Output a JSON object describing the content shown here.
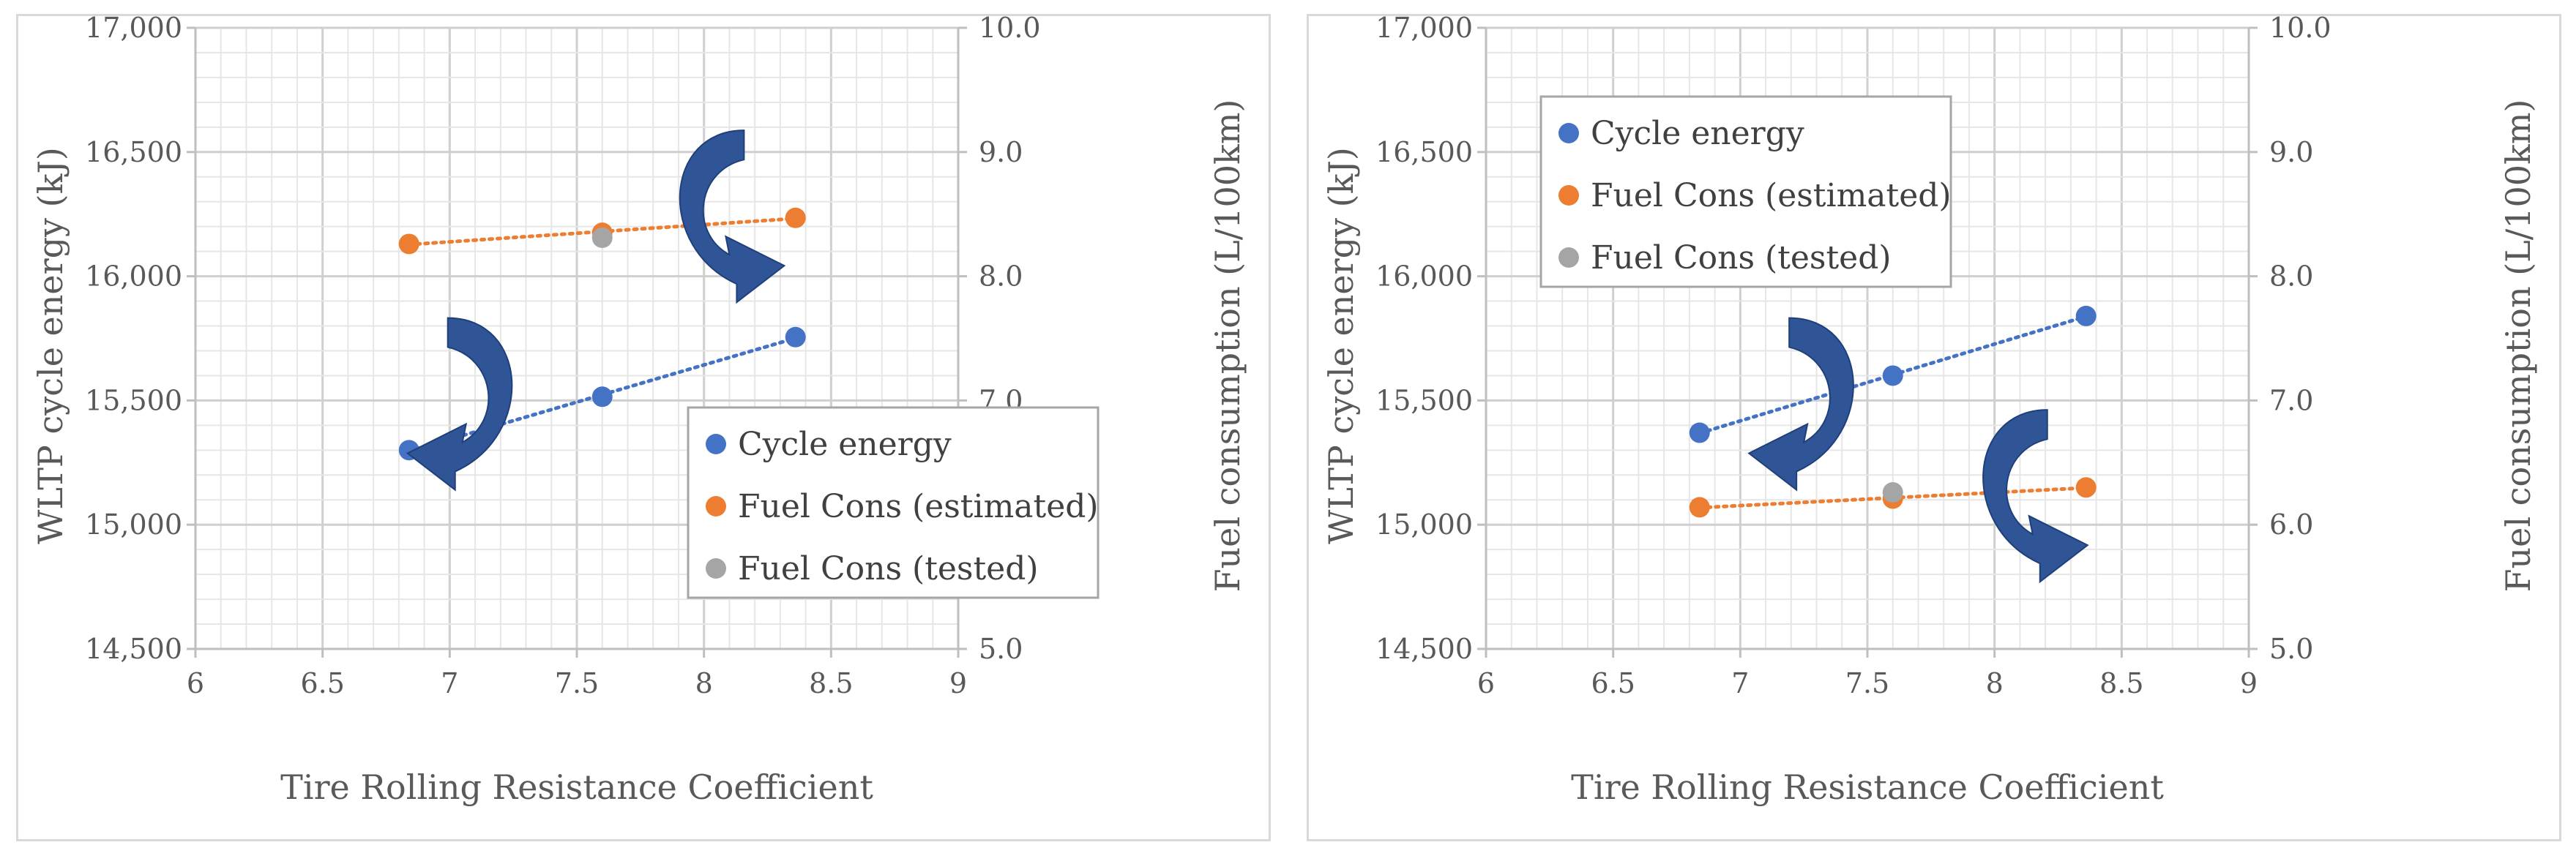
{
  "colors": {
    "cycle": "#4472c4",
    "estimated": "#ed7d31",
    "tested": "#a5a5a5",
    "arrow": "#2f5597",
    "grid": "#d9d9d9",
    "axis": "#bfbfbf"
  },
  "chart_data": [
    {
      "type": "scatter",
      "xlabel": "Tire Rolling Resistance Coefficient",
      "ylabel": "WLTP cycle energy (kJ)",
      "y2label": "Fuel consumption (L/100km)",
      "xlim": [
        6,
        9
      ],
      "ylim": [
        14500,
        17000
      ],
      "y2lim": [
        5.0,
        10.0
      ],
      "x_ticks": [
        "6",
        "6.5",
        "7",
        "7.5",
        "8",
        "8.5",
        "9"
      ],
      "y_ticks": [
        "14,500",
        "15,000",
        "15,500",
        "16,000",
        "16,500",
        "17,000"
      ],
      "y2_ticks": [
        "5.0",
        "6.0",
        "7.0",
        "8.0",
        "9.0",
        "10.0"
      ],
      "legend_position": "bottom-right",
      "series": [
        {
          "name": "Cycle energy",
          "axis": "left",
          "trendline": true,
          "x": [
            6.84,
            7.6,
            8.36
          ],
          "y": [
            15300,
            15515,
            15755
          ]
        },
        {
          "name": "Fuel Cons (estimated)",
          "axis": "right",
          "trendline": true,
          "x": [
            6.84,
            7.6,
            8.36
          ],
          "y": [
            8.26,
            8.35,
            8.47
          ]
        },
        {
          "name": "Fuel Cons (tested)",
          "axis": "right",
          "trendline": false,
          "x": [
            7.6
          ],
          "y": [
            8.31
          ]
        }
      ],
      "annotations": [
        {
          "type": "curved-arrow",
          "direction": "left",
          "axis": "left",
          "at": [
            7.05,
            15420
          ]
        },
        {
          "type": "curved-arrow",
          "direction": "right",
          "axis": "right",
          "at": [
            8.1,
            8.35
          ]
        }
      ]
    },
    {
      "type": "scatter",
      "xlabel": "Tire Rolling Resistance Coefficient",
      "ylabel": "WLTP cycle energy (kJ)",
      "y2label": "Fuel consumption (L/100km)",
      "xlim": [
        6,
        9
      ],
      "ylim": [
        14500,
        17000
      ],
      "y2lim": [
        5.0,
        10.0
      ],
      "x_ticks": [
        "6",
        "6.5",
        "7",
        "7.5",
        "8",
        "8.5",
        "9"
      ],
      "y_ticks": [
        "14,500",
        "15,000",
        "15,500",
        "16,000",
        "16,500",
        "17,000"
      ],
      "y2_ticks": [
        "5.0",
        "6.0",
        "7.0",
        "8.0",
        "9.0",
        "10.0"
      ],
      "legend_position": "top-left",
      "series": [
        {
          "name": "Cycle energy",
          "axis": "left",
          "trendline": true,
          "x": [
            6.84,
            7.6,
            8.36
          ],
          "y": [
            15370,
            15600,
            15840
          ]
        },
        {
          "name": "Fuel Cons (estimated)",
          "axis": "right",
          "trendline": true,
          "x": [
            6.84,
            7.6,
            8.36
          ],
          "y": [
            6.14,
            6.21,
            6.3
          ]
        },
        {
          "name": "Fuel Cons (tested)",
          "axis": "right",
          "trendline": false,
          "x": [
            7.6
          ],
          "y": [
            6.26
          ]
        }
      ],
      "annotations": [
        {
          "type": "curved-arrow",
          "direction": "left",
          "axis": "left",
          "at": [
            7.25,
            15420
          ]
        },
        {
          "type": "curved-arrow",
          "direction": "right",
          "axis": "right",
          "at": [
            8.15,
            6.1
          ]
        }
      ]
    }
  ]
}
